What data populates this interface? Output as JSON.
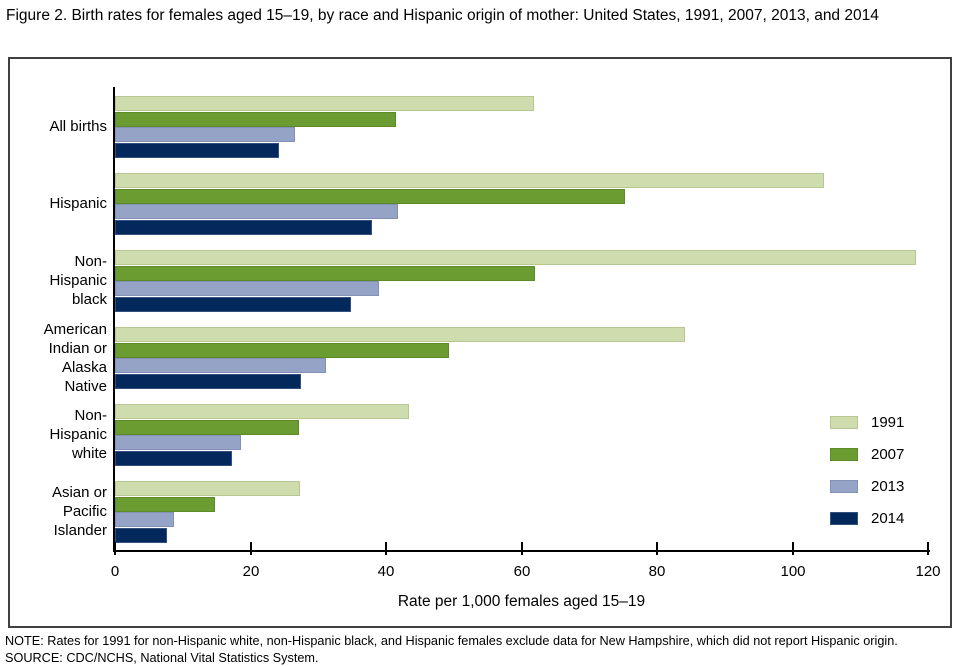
{
  "figure": {
    "title": "Figure 2. Birth rates for females aged 15–19, by race and Hispanic origin of mother: United States, 1991, 2007, 2013, and 2014",
    "note": "NOTE: Rates for 1991 for non-Hispanic white, non-Hispanic black, and Hispanic females exclude data for New Hampshire, which did not report Hispanic origin.",
    "source": "SOURCE: CDC/NCHS, National Vital Statistics System."
  },
  "chart_data": {
    "type": "bar",
    "orientation": "horizontal",
    "title": "Figure 2. Birth rates for females aged 15–19, by race and Hispanic origin of mother: United States, 1991, 2007, 2013, and 2014",
    "xlabel": "Rate per 1,000 females aged 15–19",
    "ylabel": "",
    "xlim": [
      0,
      120
    ],
    "xticks": [
      0,
      20,
      40,
      60,
      80,
      100,
      120
    ],
    "grid": false,
    "legend_position": "right-middle",
    "categories": [
      "All births",
      "Hispanic",
      "Non-Hispanic black",
      "American Indian or Alaska Native",
      "Non-Hispanic white",
      "Asian or Pacific Islander"
    ],
    "category_label_lines": [
      [
        "All births"
      ],
      [
        "Hispanic"
      ],
      [
        "Non-",
        "Hispanic",
        "black"
      ],
      [
        "American",
        "Indian or",
        "Alaska",
        "Native"
      ],
      [
        "Non-",
        "Hispanic",
        "white"
      ],
      [
        "Asian or",
        "Pacific",
        "Islander"
      ]
    ],
    "series": [
      {
        "name": "1991",
        "color": "#cfddae",
        "border_color": "#b6c791",
        "values": [
          61.8,
          104.6,
          118.2,
          84.1,
          43.4,
          27.3
        ]
      },
      {
        "name": "2007",
        "color": "#6b9c31",
        "border_color": "#5d8a27",
        "values": [
          41.5,
          75.3,
          62.0,
          49.3,
          27.2,
          14.8
        ]
      },
      {
        "name": "2013",
        "color": "#95a3c6",
        "border_color": "#8292b6",
        "values": [
          26.5,
          41.7,
          39.0,
          31.1,
          18.6,
          8.7
        ]
      },
      {
        "name": "2014",
        "color": "#03285c",
        "border_color": "#33517e",
        "values": [
          24.2,
          38.0,
          34.9,
          27.4,
          17.3,
          7.7
        ]
      }
    ],
    "axis_color": "#000000",
    "frame_color": "#404040"
  }
}
